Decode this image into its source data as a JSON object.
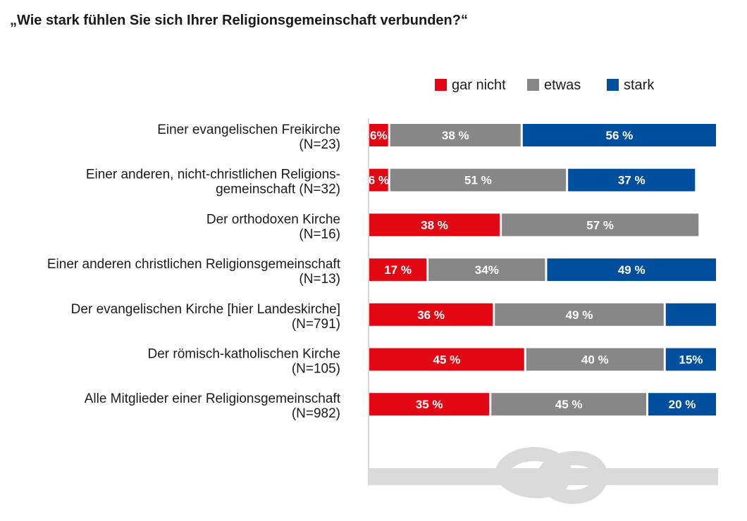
{
  "chart_data": {
    "type": "bar",
    "orientation": "horizontal",
    "stacked": true,
    "title": "„Wie stark fühlen Sie sich Ihrer Religionsgemeinschaft verbunden?“",
    "xlim": [
      0,
      100
    ],
    "grid": false,
    "legend_placement": "top-right",
    "categories": [
      {
        "lines": [
          "Einer evangelischen Freikirche",
          "(N=23)"
        ]
      },
      {
        "lines": [
          "Einer anderen, nicht-christlichen Religions-",
          "gemeinschaft (N=32)"
        ]
      },
      {
        "lines": [
          "Der orthodoxen Kirche",
          "(N=16)"
        ]
      },
      {
        "lines": [
          "Einer anderen christlichen Religionsgemeinschaft",
          "(N=13)"
        ]
      },
      {
        "lines": [
          "Der evangelischen Kirche [hier Landeskirche]",
          "(N=791)"
        ]
      },
      {
        "lines": [
          "Der römisch-katholischen Kirche",
          "(N=105)"
        ]
      },
      {
        "lines": [
          "Alle Mitglieder einer Religionsgemeinschaft",
          "(N=982)"
        ]
      }
    ],
    "series": [
      {
        "name": "gar nicht",
        "color": "#e30613",
        "values": [
          6,
          6,
          38,
          17,
          36,
          45,
          35
        ],
        "labels": [
          "6%",
          "6 %",
          "38 %",
          "17 %",
          "36 %",
          "45 %",
          "35 %"
        ]
      },
      {
        "name": "etwas",
        "color": "#878787",
        "values": [
          38,
          51,
          57,
          34,
          49,
          40,
          45
        ],
        "labels": [
          "38 %",
          "51 %",
          "57 %",
          "34%",
          "49 %",
          "40 %",
          "45 %"
        ]
      },
      {
        "name": "stark",
        "color": "#004f9f",
        "values": [
          56,
          37,
          0,
          49,
          15,
          15,
          20
        ],
        "labels": [
          "56 %",
          "37 %",
          "",
          "49 %",
          "",
          "15%",
          "20 %"
        ]
      }
    ],
    "decoration": {
      "knot_color": "#dadada"
    }
  }
}
